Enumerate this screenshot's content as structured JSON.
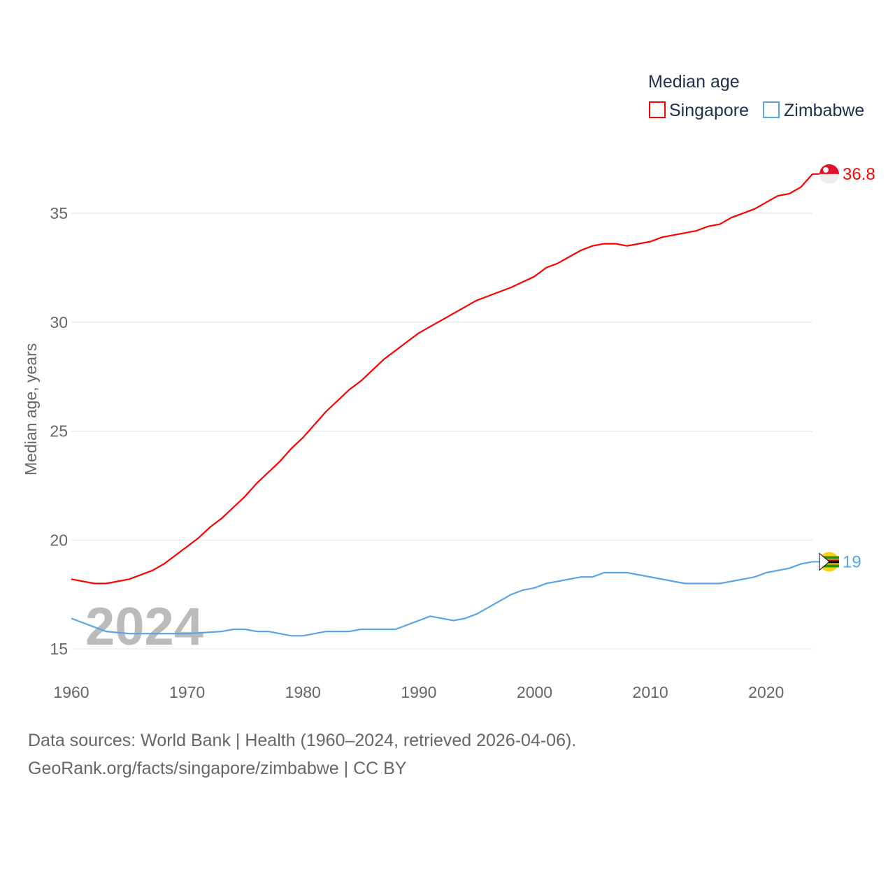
{
  "chart_data": {
    "type": "line",
    "title": "",
    "xlabel": "",
    "ylabel": "Median age, years",
    "xlim": [
      1960,
      2024
    ],
    "ylim": [
      15,
      37
    ],
    "xticks": [
      1960,
      1970,
      1980,
      1990,
      2000,
      2010,
      2020
    ],
    "yticks": [
      15,
      20,
      25,
      30,
      35
    ],
    "grid": true,
    "year_watermark": "2024",
    "legend": {
      "title": "Median age",
      "placement": "top-right"
    },
    "series": [
      {
        "name": "Singapore",
        "color": "#ff0000",
        "end_label": "36.8",
        "x": [
          1960,
          1962,
          1963,
          1965,
          1967,
          1968,
          1970,
          1971,
          1972,
          1973,
          1975,
          1976,
          1978,
          1979,
          1980,
          1982,
          1984,
          1985,
          1987,
          1990,
          1993,
          1995,
          1998,
          2000,
          2001,
          2002,
          2004,
          2005,
          2006,
          2007,
          2008,
          2010,
          2011,
          2014,
          2015,
          2016,
          2017,
          2019,
          2020,
          2021,
          2022,
          2023,
          2024
        ],
        "y": [
          18.2,
          18.0,
          18.0,
          18.2,
          18.6,
          18.9,
          19.7,
          20.1,
          20.6,
          21.0,
          22.0,
          22.6,
          23.6,
          24.2,
          24.7,
          25.9,
          26.9,
          27.3,
          28.3,
          29.5,
          30.4,
          31.0,
          31.6,
          32.1,
          32.5,
          32.7,
          33.3,
          33.5,
          33.6,
          33.6,
          33.5,
          33.7,
          33.9,
          34.2,
          34.4,
          34.5,
          34.8,
          35.2,
          35.5,
          35.8,
          35.9,
          36.2,
          36.8
        ]
      },
      {
        "name": "Zimbabwe",
        "color": "#5ba4e6",
        "end_label": "19",
        "x": [
          1960,
          1963,
          1965,
          1970,
          1973,
          1974,
          1975,
          1976,
          1977,
          1979,
          1980,
          1982,
          1984,
          1985,
          1988,
          1990,
          1991,
          1993,
          1994,
          1995,
          1998,
          1999,
          2000,
          2001,
          2004,
          2005,
          2006,
          2008,
          2013,
          2016,
          2019,
          2020,
          2022,
          2023,
          2024
        ],
        "y": [
          16.4,
          15.8,
          15.7,
          15.7,
          15.8,
          15.9,
          15.9,
          15.8,
          15.8,
          15.6,
          15.6,
          15.8,
          15.8,
          15.9,
          15.9,
          16.3,
          16.5,
          16.3,
          16.4,
          16.6,
          17.5,
          17.7,
          17.8,
          18.0,
          18.3,
          18.3,
          18.5,
          18.5,
          18.0,
          18.0,
          18.3,
          18.5,
          18.7,
          18.9,
          19.0
        ]
      }
    ]
  },
  "footer": {
    "line1": "Data sources: World Bank | Health (1960–2024, retrieved 2026-04-06).",
    "line2": "GeoRank.org/facts/singapore/zimbabwe | CC BY"
  }
}
